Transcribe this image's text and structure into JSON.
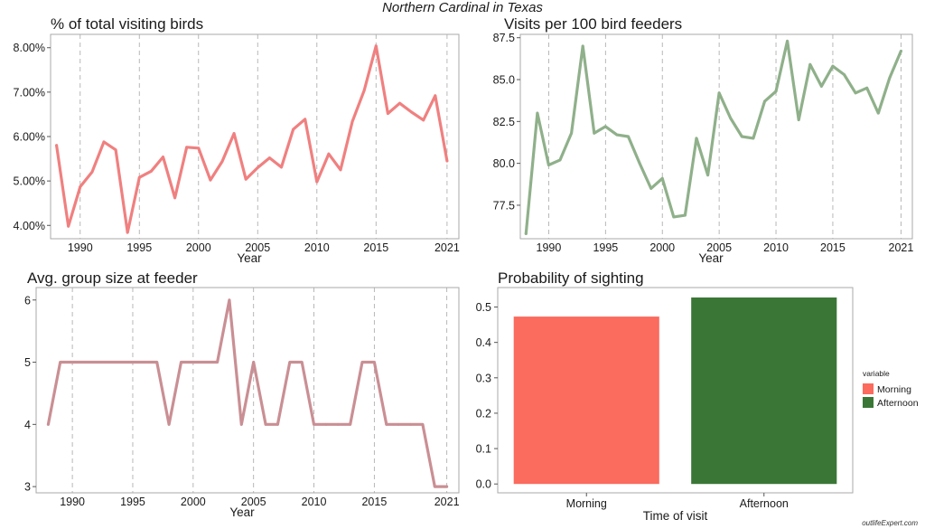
{
  "page": {
    "suptitle": "Northern Cardinal in Texas",
    "watermark": "outlifeExpert.com"
  },
  "colors": {
    "pct_line": "#f08080",
    "visits_line": "#8fb08a",
    "group_line": "#c98f94",
    "morning": "#fb6b5e",
    "afternoon": "#3a7736",
    "panel_border": "#aaaaaa",
    "vgrid": "#b0b0b0"
  },
  "chart_data": [
    {
      "id": "pct",
      "type": "line",
      "title": "% of total visiting birds",
      "xlabel": "Year",
      "ylabel": "",
      "x": [
        1988,
        1989,
        1990,
        1991,
        1992,
        1993,
        1994,
        1995,
        1996,
        1997,
        1998,
        1999,
        2000,
        2001,
        2002,
        2003,
        2004,
        2005,
        2006,
        2007,
        2008,
        2009,
        2010,
        2011,
        2012,
        2013,
        2014,
        2015,
        2016,
        2017,
        2018,
        2019,
        2020,
        2021
      ],
      "series": [
        {
          "values": [
            5.8,
            3.98,
            4.87,
            5.2,
            5.88,
            5.7,
            3.84,
            5.08,
            5.22,
            5.54,
            4.62,
            5.76,
            5.74,
            5.02,
            5.44,
            6.07,
            5.04,
            5.3,
            5.52,
            5.31,
            6.16,
            6.39,
            4.98,
            5.61,
            5.25,
            6.34,
            7.04,
            8.04,
            6.52,
            6.75,
            6.55,
            6.37,
            6.92,
            5.45
          ]
        }
      ],
      "xticks": [
        1990,
        1995,
        2000,
        2005,
        2010,
        2015,
        2021
      ],
      "xtick_labels": [
        "1990",
        "1995",
        "2000",
        "2005",
        "2010",
        "2015",
        "2021"
      ],
      "yticks": [
        4,
        5,
        6,
        7,
        8
      ],
      "ytick_labels": [
        "4.00%",
        "5.00%",
        "6.00%",
        "7.00%",
        "8.00%"
      ],
      "xlim": [
        1987.5,
        2022.0
      ],
      "ylim": [
        3.7,
        8.3
      ],
      "grid": "vertical-dashed"
    },
    {
      "id": "visits",
      "type": "line",
      "title": "Visits per 100 bird feeders",
      "xlabel": "Year",
      "ylabel": "",
      "x": [
        1988,
        1989,
        1990,
        1991,
        1992,
        1993,
        1994,
        1995,
        1996,
        1997,
        1998,
        1999,
        2000,
        2001,
        2002,
        2003,
        2004,
        2005,
        2006,
        2007,
        2008,
        2009,
        2010,
        2011,
        2012,
        2013,
        2014,
        2015,
        2016,
        2017,
        2018,
        2019,
        2020,
        2021
      ],
      "series": [
        {
          "values": [
            75.8,
            83.0,
            79.9,
            80.2,
            81.8,
            87.0,
            81.8,
            82.2,
            81.7,
            81.6,
            80.0,
            78.5,
            79.1,
            76.8,
            76.9,
            81.5,
            79.3,
            84.2,
            82.7,
            81.6,
            81.5,
            83.7,
            84.3,
            87.3,
            82.6,
            85.9,
            84.6,
            85.8,
            85.3,
            84.2,
            84.5,
            83.0,
            85.1,
            86.7
          ]
        }
      ],
      "xticks": [
        1990,
        1995,
        2000,
        2005,
        2010,
        2015,
        2021
      ],
      "xtick_labels": [
        "1990",
        "1995",
        "2000",
        "2005",
        "2010",
        "2015",
        "2021"
      ],
      "yticks": [
        77.5,
        80,
        82.5,
        85,
        87.5
      ],
      "ytick_labels": [
        "77.5",
        "80.0",
        "82.5",
        "85.0",
        "87.5"
      ],
      "xlim": [
        1987.5,
        2022.0
      ],
      "ylim": [
        75.5,
        87.7
      ],
      "grid": "vertical-dashed"
    },
    {
      "id": "group",
      "type": "line",
      "title": "Avg. group size at feeder",
      "xlabel": "Year",
      "ylabel": "",
      "x": [
        1988,
        1989,
        1990,
        1991,
        1992,
        1993,
        1994,
        1995,
        1996,
        1997,
        1998,
        1999,
        2000,
        2001,
        2002,
        2003,
        2004,
        2005,
        2006,
        2007,
        2008,
        2009,
        2010,
        2011,
        2012,
        2013,
        2014,
        2015,
        2016,
        2017,
        2018,
        2019,
        2020,
        2021
      ],
      "series": [
        {
          "values": [
            4,
            5,
            5,
            5,
            5,
            5,
            5,
            5,
            5,
            5,
            4,
            5,
            5,
            5,
            5,
            6,
            4,
            5,
            4,
            4,
            5,
            5,
            4,
            4,
            4,
            4,
            5,
            5,
            4,
            4,
            4,
            4,
            3,
            3
          ]
        }
      ],
      "xticks": [
        1990,
        1995,
        2000,
        2005,
        2010,
        2015,
        2021
      ],
      "xtick_labels": [
        "1990",
        "1995",
        "2000",
        "2005",
        "2010",
        "2015",
        "2021"
      ],
      "yticks": [
        3,
        4,
        5,
        6
      ],
      "ytick_labels": [
        "3",
        "4",
        "5",
        "6"
      ],
      "xlim": [
        1987.0,
        2022.0
      ],
      "ylim": [
        2.9,
        6.2
      ],
      "grid": "vertical-dashed"
    },
    {
      "id": "prob",
      "type": "bar",
      "title": "Probability of sighting",
      "xlabel": "Time of visit",
      "ylabel": "",
      "categories": [
        "Morning",
        "Afternoon"
      ],
      "values": [
        0.473,
        0.527
      ],
      "yticks": [
        0,
        0.1,
        0.2,
        0.3,
        0.4,
        0.5
      ],
      "ytick_labels": [
        "0.0",
        "0.1",
        "0.2",
        "0.3",
        "0.4",
        "0.5"
      ],
      "ylim": [
        -0.025,
        0.555
      ],
      "legend": {
        "title": "variable",
        "entries": [
          "Morning",
          "Afternoon"
        ],
        "position": "right"
      }
    }
  ]
}
